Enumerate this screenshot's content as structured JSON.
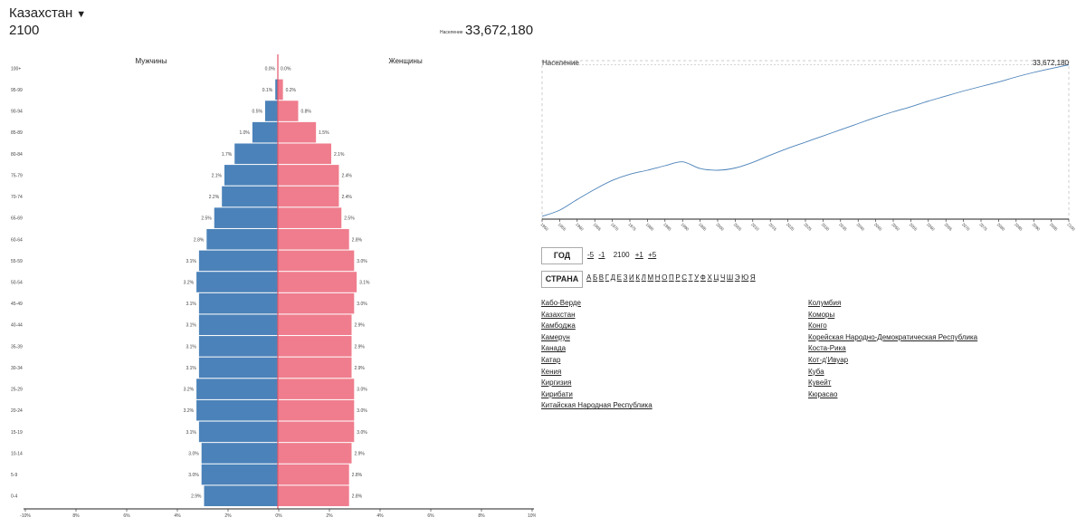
{
  "header": {
    "country": "Казахстан",
    "caret": "▼",
    "year": "2100",
    "population_label": "Население",
    "population_value": "33,672,180"
  },
  "pyramid": {
    "male_label": "Мужчины",
    "female_label": "Женщины",
    "colors": {
      "male": "#4b82b9",
      "female": "#ef7d8d"
    },
    "x_ticks": [
      "-10%",
      "8%",
      "6%",
      "4%",
      "2%",
      "0%",
      "2%",
      "4%",
      "6%",
      "8%",
      "10%"
    ],
    "groups": [
      {
        "age": "100+",
        "male": 0.0,
        "female": 0.0,
        "male_label": "0.0%",
        "female_label": "0.0%"
      },
      {
        "age": "95-99",
        "male": 0.1,
        "female": 0.2,
        "male_label": "0.1%",
        "female_label": "0.2%"
      },
      {
        "age": "90-94",
        "male": 0.5,
        "female": 0.8,
        "male_label": "0.5%",
        "female_label": "0.8%"
      },
      {
        "age": "85-89",
        "male": 1.0,
        "female": 1.5,
        "male_label": "1.0%",
        "female_label": "1.5%"
      },
      {
        "age": "80-84",
        "male": 1.7,
        "female": 2.1,
        "male_label": "1.7%",
        "female_label": "2.1%"
      },
      {
        "age": "75-79",
        "male": 2.1,
        "female": 2.4,
        "male_label": "2.1%",
        "female_label": "2.4%"
      },
      {
        "age": "70-74",
        "male": 2.2,
        "female": 2.4,
        "male_label": "2.2%",
        "female_label": "2.4%"
      },
      {
        "age": "65-69",
        "male": 2.5,
        "female": 2.5,
        "male_label": "2.5%",
        "female_label": "2.5%"
      },
      {
        "age": "60-64",
        "male": 2.8,
        "female": 2.8,
        "male_label": "2.8%",
        "female_label": "2.8%"
      },
      {
        "age": "55-59",
        "male": 3.1,
        "female": 3.0,
        "male_label": "3.1%",
        "female_label": "3.0%"
      },
      {
        "age": "50-54",
        "male": 3.2,
        "female": 3.1,
        "male_label": "3.2%",
        "female_label": "3.1%"
      },
      {
        "age": "45-49",
        "male": 3.1,
        "female": 3.0,
        "male_label": "3.1%",
        "female_label": "3.0%"
      },
      {
        "age": "40-44",
        "male": 3.1,
        "female": 2.9,
        "male_label": "3.1%",
        "female_label": "2.9%"
      },
      {
        "age": "35-39",
        "male": 3.1,
        "female": 2.9,
        "male_label": "3.1%",
        "female_label": "2.9%"
      },
      {
        "age": "30-34",
        "male": 3.1,
        "female": 2.9,
        "male_label": "3.1%",
        "female_label": "2.9%"
      },
      {
        "age": "25-29",
        "male": 3.2,
        "female": 3.0,
        "male_label": "3.2%",
        "female_label": "3.0%"
      },
      {
        "age": "20-24",
        "male": 3.2,
        "female": 3.0,
        "male_label": "3.2%",
        "female_label": "3.0%"
      },
      {
        "age": "15-19",
        "male": 3.1,
        "female": 3.0,
        "male_label": "3.1%",
        "female_label": "3.0%"
      },
      {
        "age": "10-14",
        "male": 3.0,
        "female": 2.9,
        "male_label": "3.0%",
        "female_label": "2.9%"
      },
      {
        "age": "5-9",
        "male": 3.0,
        "female": 2.8,
        "male_label": "3.0%",
        "female_label": "2.8%"
      },
      {
        "age": "0-4",
        "male": 2.9,
        "female": 2.8,
        "male_label": "2.9%",
        "female_label": "2.8%"
      }
    ]
  },
  "chart_data": {
    "type": "line",
    "title": "Население",
    "end_label": "33,672,180",
    "x": [
      1950,
      1955,
      1960,
      1965,
      1970,
      1975,
      1980,
      1985,
      1990,
      1995,
      2000,
      2005,
      2010,
      2015,
      2020,
      2025,
      2030,
      2035,
      2040,
      2045,
      2050,
      2055,
      2060,
      2065,
      2070,
      2075,
      2080,
      2085,
      2090,
      2095,
      2100
    ],
    "y": [
      6700000,
      7800000,
      9700000,
      11500000,
      13100000,
      14200000,
      14900000,
      15700000,
      16400000,
      15200000,
      14900000,
      15300000,
      16300000,
      17600000,
      18800000,
      19900000,
      21000000,
      22100000,
      23200000,
      24300000,
      25300000,
      26200000,
      27200000,
      28100000,
      29000000,
      29800000,
      30600000,
      31500000,
      32300000,
      33000000,
      33672180
    ],
    "ylim": [
      6200000,
      34400000
    ],
    "x_ticks": [
      "1950",
      "1955",
      "1960",
      "1965",
      "1970",
      "1975",
      "1980",
      "1985",
      "1990",
      "1995",
      "2000",
      "2005",
      "2010",
      "2015",
      "2020",
      "2025",
      "2030",
      "2035",
      "2040",
      "2045",
      "2050",
      "2055",
      "2060",
      "2065",
      "2070",
      "2075",
      "2080",
      "2085",
      "2090",
      "2095",
      "2100"
    ],
    "line_color": "#4b82b9"
  },
  "controls": {
    "year_button": "ГОД",
    "year_nav": [
      "-5",
      "-1",
      "2100",
      "+1",
      "+5"
    ],
    "country_button": "СТРАНА",
    "letters": [
      "А",
      "Б",
      "В",
      "Г",
      "Д",
      "Е",
      "З",
      "И",
      "К",
      "Л",
      "М",
      "Н",
      "О",
      "П",
      "Р",
      "С",
      "Т",
      "У",
      "Ф",
      "Х",
      "Ц",
      "Ч",
      "Ш",
      "Э",
      "Ю",
      "Я"
    ]
  },
  "countries": {
    "col1": [
      "Кабо-Верде",
      "Казахстан",
      "Камбоджа",
      "Камерун",
      "Канада",
      "Катар",
      "Кения",
      "Киргизия",
      "Кирибати",
      "Китайская Народная Республика"
    ],
    "col2": [
      "Колумбия",
      "Коморы",
      "Конго",
      "Корейская Народно-Демократическая Республика",
      "Коста-Рика",
      "Кот-д'Ивуар",
      "Куба",
      "Кувейт",
      "Кюрасао"
    ]
  }
}
